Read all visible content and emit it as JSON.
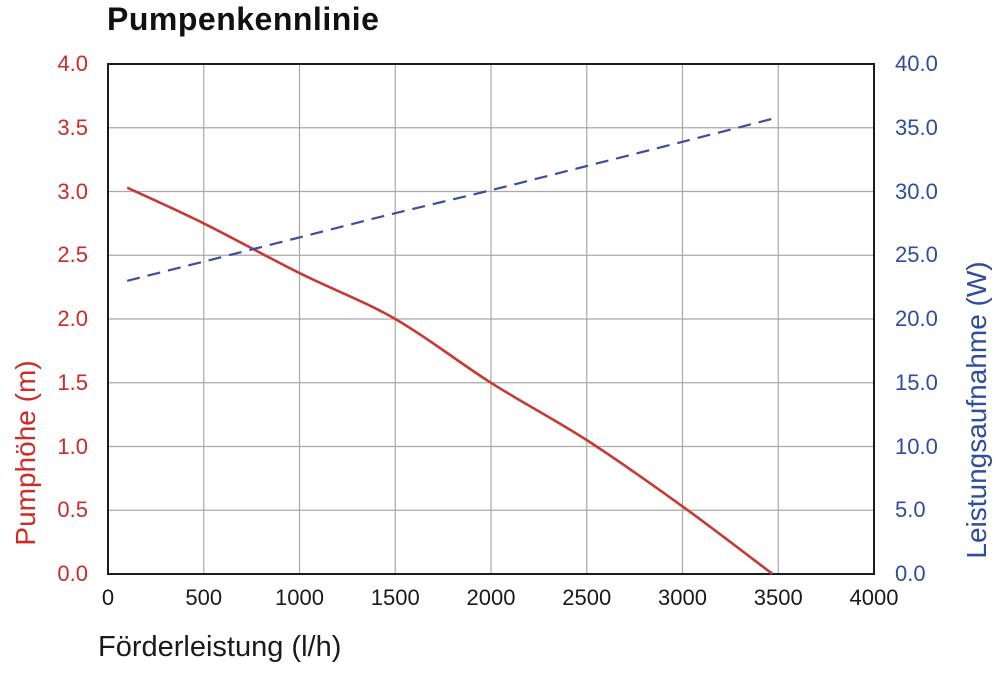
{
  "chart_data": {
    "type": "line",
    "title": "Pumpenkennlinie",
    "grid": true,
    "legend": "none",
    "colors": {
      "grid": "#a9a9a9",
      "plot_border": "#1c1c1c",
      "left_axis_text": "#cc2b26",
      "right_axis_text": "#2e4d9e",
      "x_axis_text": "#1a1a1a",
      "head_line": "#c53b34",
      "power_line": "#3c4da3"
    },
    "x_axis": {
      "label": "Förderleistung (l/h)",
      "min": 0,
      "max": 4000,
      "tick_step": 500,
      "ticks": [
        "0",
        "500",
        "1000",
        "1500",
        "2000",
        "2500",
        "3000",
        "3500",
        "4000"
      ]
    },
    "y_left": {
      "label": "Pumphöhe (m)",
      "min": 0,
      "max": 4,
      "tick_step": 0.5,
      "ticks": [
        "0.0",
        "0.5",
        "1.0",
        "1.5",
        "2.0",
        "2.5",
        "3.0",
        "3.5",
        "4.0"
      ]
    },
    "y_right": {
      "label": "Leistungsaufnahme (W)",
      "min": 0,
      "max": 40,
      "tick_step": 5,
      "ticks": [
        "0.0",
        "5.0",
        "10.0",
        "15.0",
        "20.0",
        "25.0",
        "30.0",
        "35.0",
        "40.0"
      ]
    },
    "series": [
      {
        "name": "Pumphöhe",
        "axis": "left",
        "style": "solid",
        "color": "#c53b34",
        "points": [
          [
            100,
            3.03
          ],
          [
            500,
            2.75
          ],
          [
            1000,
            2.36
          ],
          [
            1500,
            2.0
          ],
          [
            2000,
            1.5
          ],
          [
            2500,
            1.05
          ],
          [
            3000,
            0.53
          ],
          [
            3470,
            0.0
          ]
        ]
      },
      {
        "name": "Leistungsaufnahme",
        "axis": "right",
        "style": "dashed",
        "color": "#3c4da3",
        "points": [
          [
            100,
            23.0
          ],
          [
            500,
            24.5
          ],
          [
            1000,
            26.4
          ],
          [
            1500,
            28.3
          ],
          [
            2000,
            30.1
          ],
          [
            2500,
            32.0
          ],
          [
            3000,
            33.9
          ],
          [
            3470,
            35.7
          ]
        ]
      }
    ]
  }
}
